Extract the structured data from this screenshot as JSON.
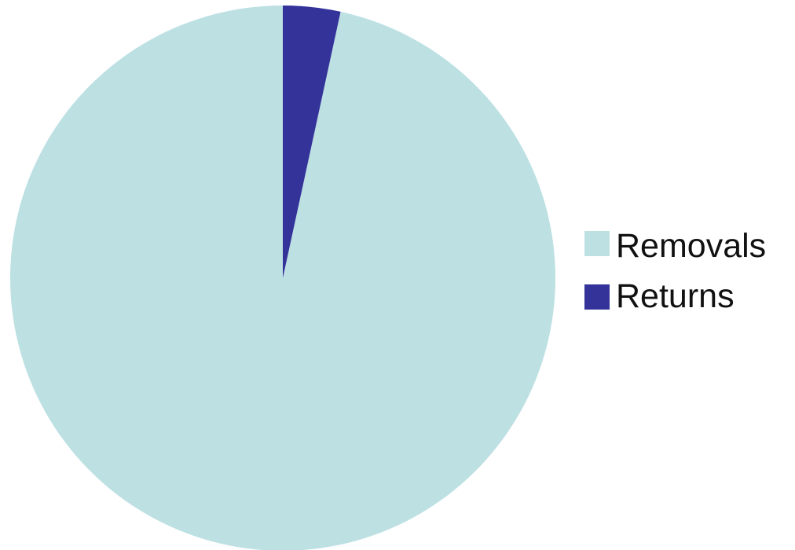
{
  "chart_data": {
    "type": "pie",
    "slices": [
      {
        "label": "Removals",
        "value": 96.6,
        "color": "#bde0e3"
      },
      {
        "label": "Returns",
        "value": 3.4,
        "color": "#33339a"
      }
    ],
    "start": "top",
    "direction": "counterclockwise",
    "legend_placement": "right"
  }
}
